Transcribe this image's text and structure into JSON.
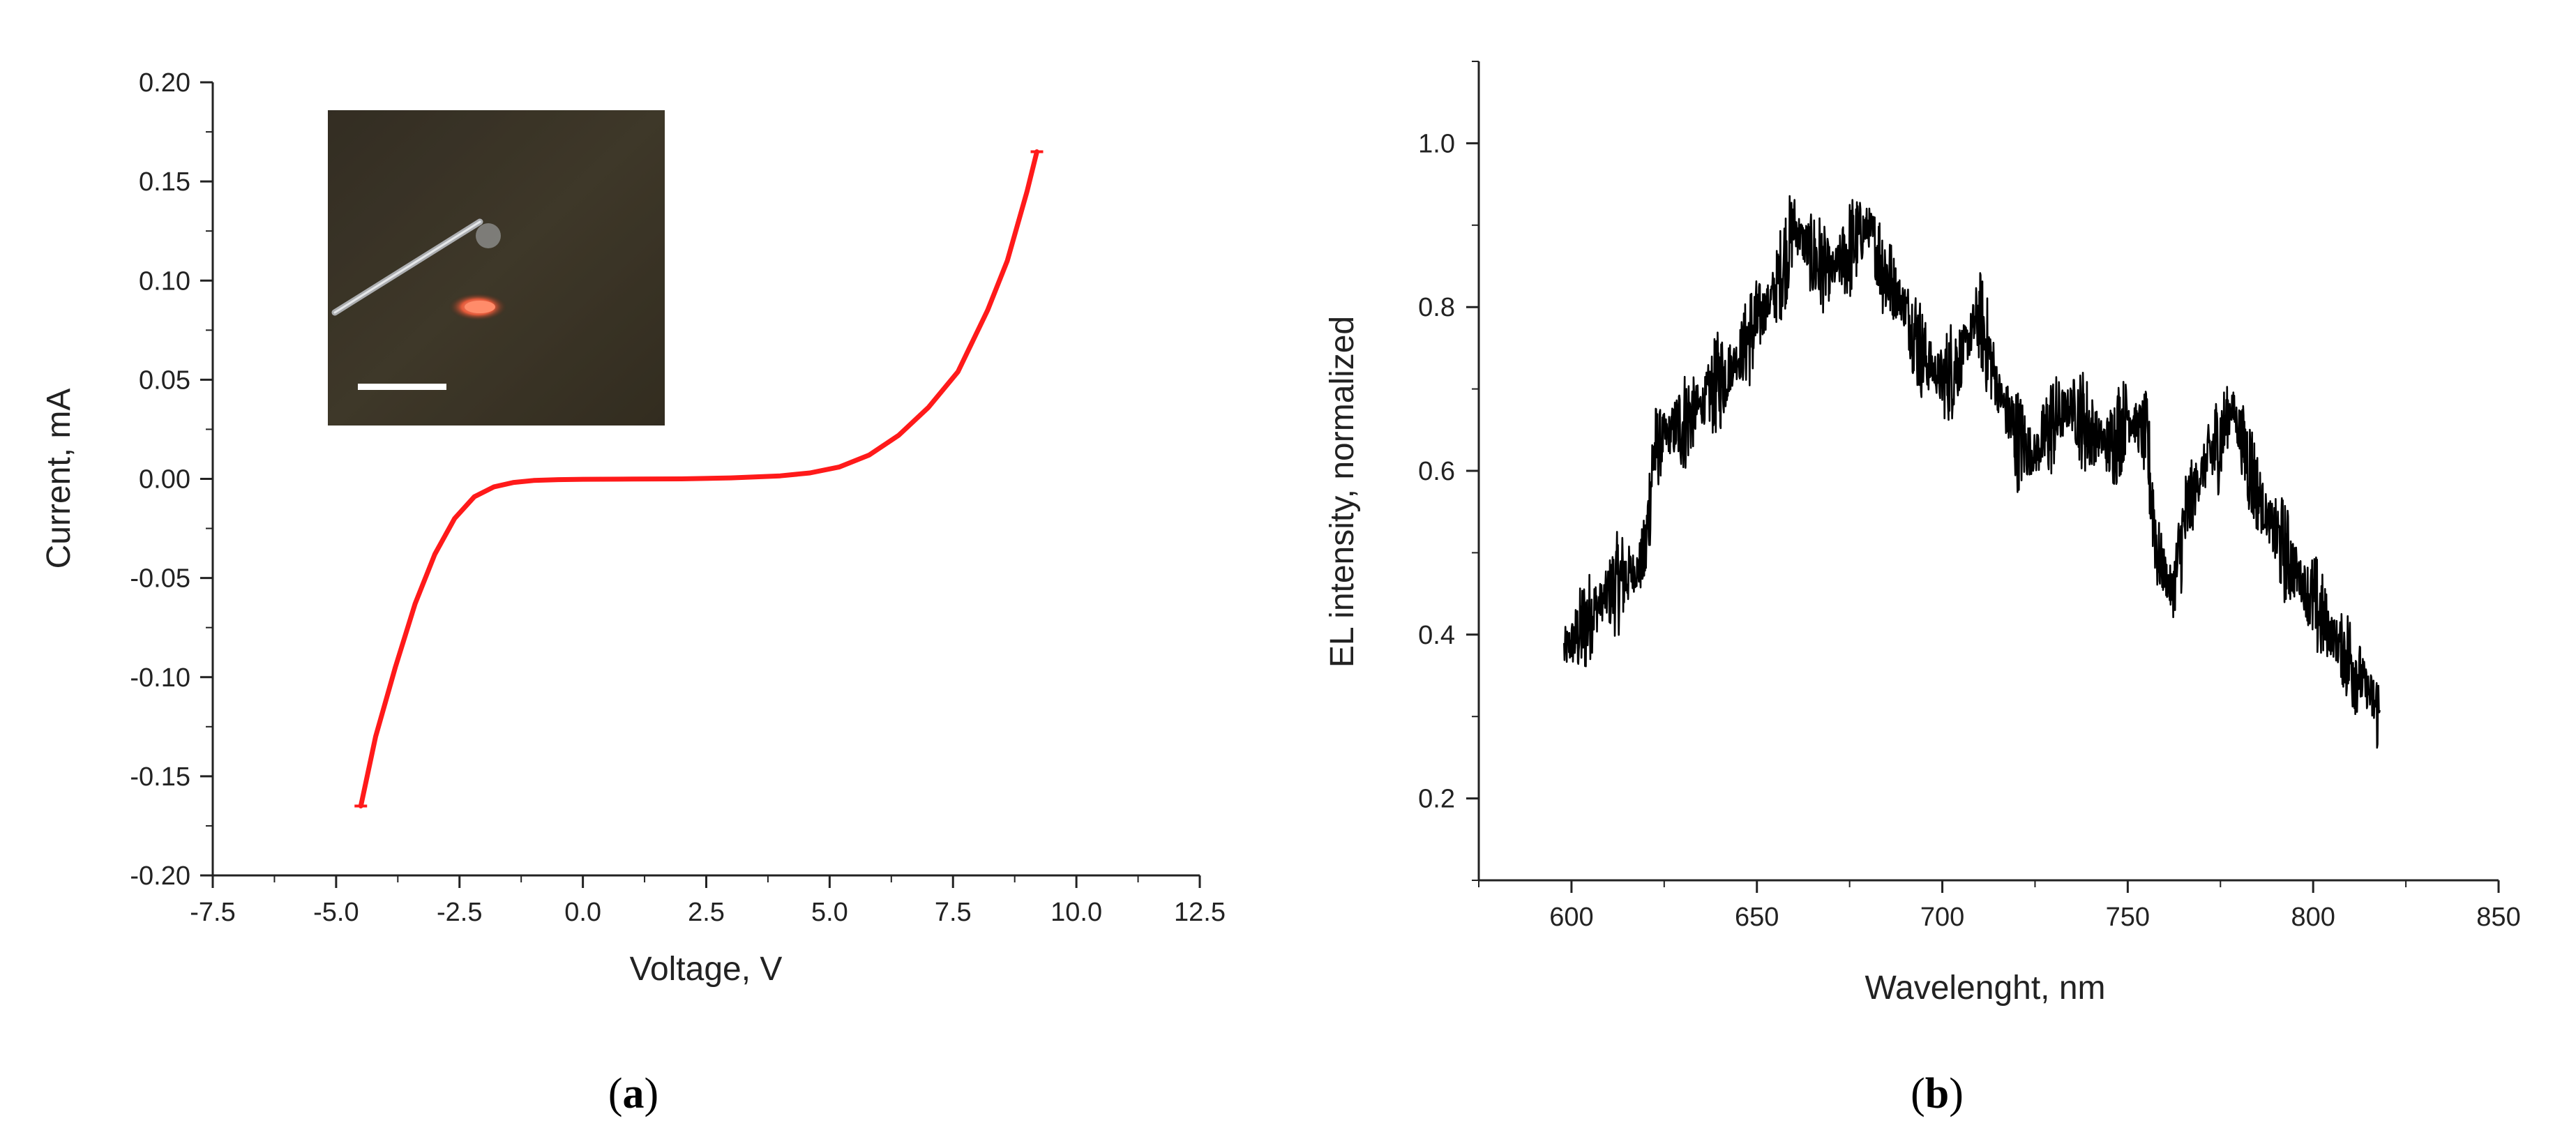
{
  "chart_data": [
    {
      "panel": "(a)",
      "panel_letter": "a",
      "type": "line",
      "xlabel": "Voltage, V",
      "ylabel": "Current, mA",
      "xlim": [
        -7.5,
        12.5
      ],
      "ylim": [
        -0.2,
        0.2
      ],
      "xticks": [
        "-7.5",
        "-5.0",
        "-2.5",
        "0.0",
        "2.5",
        "5.0",
        "7.5",
        "10.0",
        "12.5"
      ],
      "yticks": [
        "-0.20",
        "-0.15",
        "-0.10",
        "-0.05",
        "0.00",
        "0.05",
        "0.10",
        "0.15",
        "0.20"
      ],
      "line_color": "#ff1a1a",
      "inset": "photo of the light-emitting structure with a probe needle and a white scale bar",
      "series": [
        {
          "x": [
            -4.5,
            -4.2,
            -3.8,
            -3.4,
            -3.0,
            -2.6,
            -2.2,
            -1.8,
            -1.4,
            -1.0,
            -0.5,
            0.0,
            1.0,
            2.0,
            3.0,
            4.0,
            4.6,
            5.2,
            5.8,
            6.4,
            7.0,
            7.6,
            8.2,
            8.6,
            9.0,
            9.2
          ],
          "y": [
            -0.165,
            -0.13,
            -0.095,
            -0.063,
            -0.038,
            -0.02,
            -0.009,
            -0.004,
            -0.0018,
            -0.0008,
            -0.0004,
            -0.0002,
            -0.0001,
            0.0,
            0.0005,
            0.0015,
            0.003,
            0.006,
            0.012,
            0.022,
            0.036,
            0.054,
            0.085,
            0.11,
            0.145,
            0.165
          ]
        }
      ]
    },
    {
      "panel": "(b)",
      "panel_letter": "b",
      "type": "line",
      "xlabel": "Wavelenght, nm",
      "ylabel": "EL intensity, normalized",
      "xlim": [
        575,
        850
      ],
      "ylim": [
        0.1,
        1.1
      ],
      "xticks": [
        "600",
        "650",
        "700",
        "750",
        "800",
        "850"
      ],
      "yticks": [
        "0.2",
        "0.4",
        "0.6",
        "0.8",
        "1.0"
      ],
      "line_color": "#000000",
      "series": [
        {
          "x": [
            598,
            602,
            606,
            610,
            614,
            618,
            620,
            622,
            625,
            630,
            635,
            640,
            645,
            650,
            655,
            660,
            665,
            670,
            675,
            680,
            685,
            690,
            695,
            700,
            705,
            710,
            715,
            720,
            725,
            730,
            735,
            740,
            745,
            750,
            755,
            758,
            762,
            766,
            770,
            775,
            778,
            782,
            786,
            790,
            795,
            800,
            805,
            810,
            815,
            818
          ],
          "y": [
            0.38,
            0.4,
            0.43,
            0.45,
            0.47,
            0.48,
            0.5,
            0.62,
            0.64,
            0.66,
            0.68,
            0.71,
            0.74,
            0.78,
            0.82,
            0.9,
            0.86,
            0.84,
            0.87,
            0.9,
            0.84,
            0.8,
            0.74,
            0.71,
            0.74,
            0.79,
            0.7,
            0.64,
            0.62,
            0.66,
            0.68,
            0.65,
            0.63,
            0.67,
            0.64,
            0.5,
            0.45,
            0.55,
            0.6,
            0.64,
            0.68,
            0.62,
            0.56,
            0.52,
            0.48,
            0.44,
            0.4,
            0.37,
            0.33,
            0.3
          ]
        }
      ]
    }
  ]
}
